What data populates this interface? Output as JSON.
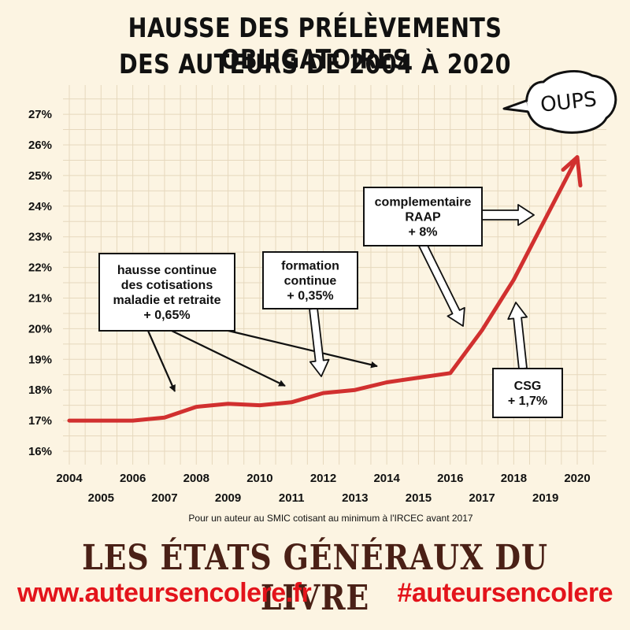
{
  "title": {
    "line1": "HAUSSE DES PRÉLÈVEMENTS OBLIGATOIRES",
    "line2": "DES AUTEURS DE 2004 À 2020"
  },
  "note": "Pour un auteur au SMIC cotisant au minimum à l'IRCEC avant 2017",
  "brand": "LES ÉTATS GÉNÉRAUX DU LIVRE",
  "website": "www.auteursencolere.fr",
  "hashtag": "#auteursencolere",
  "bubble": "OUPS",
  "chart_data": {
    "type": "line",
    "x": [
      2004,
      2005,
      2006,
      2007,
      2008,
      2009,
      2010,
      2011,
      2012,
      2013,
      2014,
      2015,
      2016,
      2017,
      2018,
      2019,
      2020
    ],
    "values": [
      17.0,
      17.0,
      17.0,
      17.1,
      17.45,
      17.55,
      17.5,
      17.6,
      17.9,
      18.0,
      18.25,
      18.4,
      18.55,
      19.95,
      21.6,
      23.6,
      25.6
    ],
    "y_ticks": [
      "16%",
      "17%",
      "18%",
      "19%",
      "20%",
      "21%",
      "22%",
      "23%",
      "24%",
      "25%",
      "26%",
      "27%"
    ],
    "ylim": [
      16,
      27
    ],
    "xlim": [
      2004,
      2020
    ],
    "grid": true,
    "line_color": "#d1302f",
    "annotations": [
      {
        "lines": [
          "hausse continue",
          "des cotisations",
          "maladie et retraite",
          "+ 0,65%"
        ]
      },
      {
        "lines": [
          "formation",
          "continue",
          "+ 0,35%"
        ]
      },
      {
        "lines": [
          "complementaire",
          "RAAP",
          "+ 8%"
        ]
      },
      {
        "lines": [
          "CSG",
          "+ 1,7%"
        ]
      }
    ]
  }
}
